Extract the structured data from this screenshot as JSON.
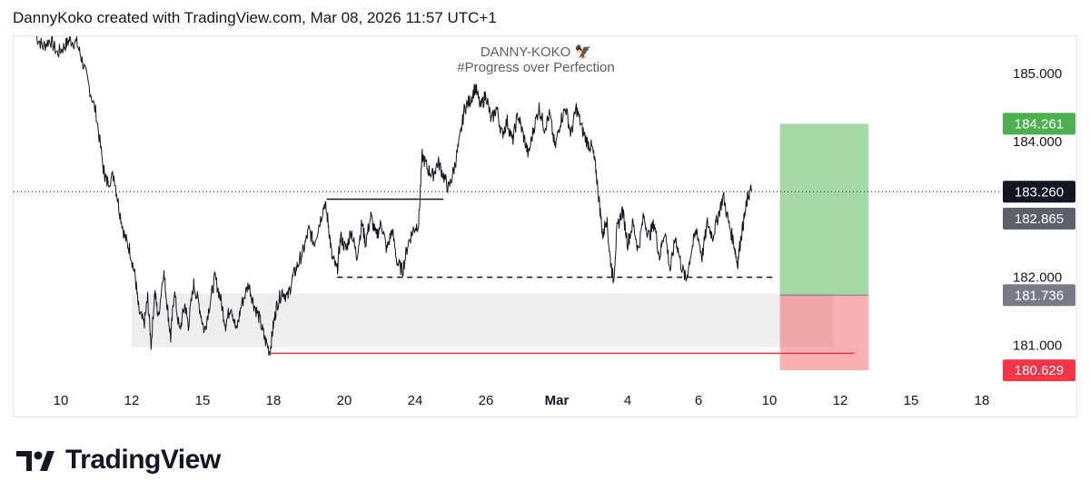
{
  "header": {
    "caption": "DannyKoko created with TradingView.com, Mar 08, 2026 11:57 UTC+1"
  },
  "watermark": {
    "line1": "DANNY-KOKO 🦅",
    "line2": "#Progress over Perfection"
  },
  "brand": {
    "name": "TradingView"
  },
  "chart_data": {
    "type": "line",
    "y_range": [
      180.47,
      185.55
    ],
    "y_ticks": [
      {
        "value": 185.0,
        "label": "185.000"
      },
      {
        "value": 184.0,
        "label": "184.000"
      },
      {
        "value": 182.0,
        "label": "182.000"
      },
      {
        "value": 181.0,
        "label": "181.000"
      }
    ],
    "x_ticks": [
      {
        "t": 0,
        "label": "10"
      },
      {
        "t": 2,
        "label": "12"
      },
      {
        "t": 4,
        "label": "15"
      },
      {
        "t": 6,
        "label": "18"
      },
      {
        "t": 8,
        "label": "20"
      },
      {
        "t": 10,
        "label": "24"
      },
      {
        "t": 12,
        "label": "26"
      },
      {
        "t": 14,
        "label": "Mar"
      },
      {
        "t": 16,
        "label": "4"
      },
      {
        "t": 18,
        "label": "6"
      },
      {
        "t": 20,
        "label": "10"
      },
      {
        "t": 22,
        "label": "12"
      },
      {
        "t": 24,
        "label": "15"
      },
      {
        "t": 26,
        "label": "18"
      }
    ],
    "price_labels": [
      {
        "value": 184.261,
        "label": "184.261",
        "color": "#4caf50"
      },
      {
        "value": 183.26,
        "label": "183.260",
        "color": "#131722"
      },
      {
        "value": 182.865,
        "label": "182.865",
        "color": "#5d606b"
      },
      {
        "value": 181.736,
        "label": "181.736",
        "color": "#787b86"
      },
      {
        "value": 180.629,
        "label": "180.629",
        "color": "#f23645"
      }
    ],
    "current_price": 183.26,
    "series": [
      {
        "name": "",
        "color": "#131722",
        "points": [
          [
            -0.7,
            185.55
          ],
          [
            -0.5,
            185.4
          ],
          [
            -0.3,
            185.5
          ],
          [
            -0.1,
            185.3
          ],
          [
            0.1,
            185.4
          ],
          [
            0.25,
            185.5
          ],
          [
            0.45,
            185.45
          ],
          [
            0.6,
            185.2
          ],
          [
            0.8,
            184.8
          ],
          [
            1.0,
            184.4
          ],
          [
            1.2,
            183.6
          ],
          [
            1.3,
            183.4
          ],
          [
            1.5,
            183.5
          ],
          [
            1.65,
            183.0
          ],
          [
            1.8,
            182.6
          ],
          [
            1.95,
            182.4
          ],
          [
            2.1,
            182.0
          ],
          [
            2.2,
            181.5
          ],
          [
            2.35,
            181.3
          ],
          [
            2.45,
            181.7
          ],
          [
            2.55,
            181.0
          ],
          [
            2.65,
            181.8
          ],
          [
            2.75,
            181.4
          ],
          [
            2.9,
            182.1
          ],
          [
            3.0,
            181.6
          ],
          [
            3.1,
            181.1
          ],
          [
            3.2,
            181.8
          ],
          [
            3.35,
            181.2
          ],
          [
            3.5,
            181.6
          ],
          [
            3.6,
            181.3
          ],
          [
            3.75,
            181.9
          ],
          [
            3.9,
            181.6
          ],
          [
            4.05,
            181.2
          ],
          [
            4.2,
            181.6
          ],
          [
            4.35,
            182.0
          ],
          [
            4.5,
            181.7
          ],
          [
            4.65,
            181.3
          ],
          [
            4.8,
            181.6
          ],
          [
            4.95,
            181.2
          ],
          [
            5.1,
            181.6
          ],
          [
            5.3,
            181.9
          ],
          [
            5.45,
            181.6
          ],
          [
            5.6,
            181.4
          ],
          [
            5.75,
            181.1
          ],
          [
            5.9,
            180.9
          ],
          [
            6.0,
            181.3
          ],
          [
            6.1,
            181.6
          ],
          [
            6.25,
            181.8
          ],
          [
            6.4,
            181.7
          ],
          [
            6.55,
            182.0
          ],
          [
            6.7,
            182.2
          ],
          [
            6.85,
            182.4
          ],
          [
            7.0,
            182.7
          ],
          [
            7.15,
            182.5
          ],
          [
            7.3,
            182.8
          ],
          [
            7.45,
            183.1
          ],
          [
            7.55,
            182.8
          ],
          [
            7.65,
            182.3
          ],
          [
            7.8,
            182.1
          ],
          [
            7.9,
            182.6
          ],
          [
            8.05,
            182.4
          ],
          [
            8.2,
            182.7
          ],
          [
            8.35,
            182.3
          ],
          [
            8.5,
            182.8
          ],
          [
            8.6,
            182.5
          ],
          [
            8.75,
            182.9
          ],
          [
            8.9,
            182.6
          ],
          [
            9.05,
            182.8
          ],
          [
            9.2,
            182.4
          ],
          [
            9.35,
            182.7
          ],
          [
            9.5,
            182.2
          ],
          [
            9.65,
            182.1
          ],
          [
            9.8,
            182.5
          ],
          [
            9.95,
            182.7
          ],
          [
            10.1,
            182.8
          ],
          [
            10.2,
            183.8
          ],
          [
            10.35,
            183.6
          ],
          [
            10.5,
            183.5
          ],
          [
            10.65,
            183.7
          ],
          [
            10.8,
            183.5
          ],
          [
            10.95,
            183.3
          ],
          [
            11.1,
            183.6
          ],
          [
            11.25,
            184.0
          ],
          [
            11.4,
            184.5
          ],
          [
            11.55,
            184.6
          ],
          [
            11.7,
            184.8
          ],
          [
            11.85,
            184.5
          ],
          [
            12.0,
            184.7
          ],
          [
            12.15,
            184.3
          ],
          [
            12.3,
            184.5
          ],
          [
            12.45,
            184.1
          ],
          [
            12.6,
            184.3
          ],
          [
            12.75,
            184.0
          ],
          [
            12.9,
            184.4
          ],
          [
            13.05,
            184.1
          ],
          [
            13.2,
            183.8
          ],
          [
            13.35,
            184.2
          ],
          [
            13.5,
            184.5
          ],
          [
            13.65,
            184.2
          ],
          [
            13.8,
            184.4
          ],
          [
            13.95,
            183.9
          ],
          [
            14.1,
            184.3
          ],
          [
            14.25,
            184.5
          ],
          [
            14.4,
            184.1
          ],
          [
            14.55,
            184.5
          ],
          [
            14.7,
            184.2
          ],
          [
            14.85,
            184.0
          ],
          [
            15.0,
            183.9
          ],
          [
            15.1,
            183.6
          ],
          [
            15.2,
            183.1
          ],
          [
            15.3,
            182.6
          ],
          [
            15.4,
            182.9
          ],
          [
            15.5,
            182.3
          ],
          [
            15.6,
            181.95
          ],
          [
            15.7,
            182.7
          ],
          [
            15.85,
            183.0
          ],
          [
            16.0,
            182.5
          ],
          [
            16.15,
            182.8
          ],
          [
            16.3,
            182.4
          ],
          [
            16.45,
            182.9
          ],
          [
            16.6,
            182.6
          ],
          [
            16.75,
            182.8
          ],
          [
            16.9,
            182.3
          ],
          [
            17.05,
            182.7
          ],
          [
            17.2,
            182.1
          ],
          [
            17.35,
            182.6
          ],
          [
            17.5,
            182.2
          ],
          [
            17.65,
            181.95
          ],
          [
            17.8,
            182.4
          ],
          [
            17.95,
            182.7
          ],
          [
            18.1,
            182.3
          ],
          [
            18.25,
            182.8
          ],
          [
            18.4,
            182.6
          ],
          [
            18.55,
            182.9
          ],
          [
            18.7,
            183.2
          ],
          [
            18.85,
            182.8
          ],
          [
            19.0,
            182.5
          ],
          [
            19.1,
            182.2
          ],
          [
            19.2,
            182.6
          ],
          [
            19.3,
            182.9
          ],
          [
            19.4,
            183.2
          ],
          [
            19.5,
            183.3
          ]
        ]
      }
    ],
    "annotations": [
      {
        "type": "horizontal_segment",
        "style": "solid",
        "color": "#131722",
        "t1": 7.5,
        "t2": 10.8,
        "value": 183.15
      },
      {
        "type": "horizontal_segment",
        "style": "dashed",
        "color": "#131722",
        "t1": 7.8,
        "t2": 20.1,
        "value": 182.0
      },
      {
        "type": "horizontal_segment",
        "style": "solid",
        "color": "#f23645",
        "t1": 5.9,
        "t2": 22.4,
        "value": 180.88
      },
      {
        "type": "zone",
        "color": "#eeeeee",
        "t1": 2.0,
        "t2": 21.8,
        "low": 180.97,
        "high": 181.76
      },
      {
        "type": "long_position",
        "entry": 181.736,
        "target": 184.261,
        "stop": 180.629,
        "t1": 20.3,
        "t2": 22.8
      }
    ]
  }
}
